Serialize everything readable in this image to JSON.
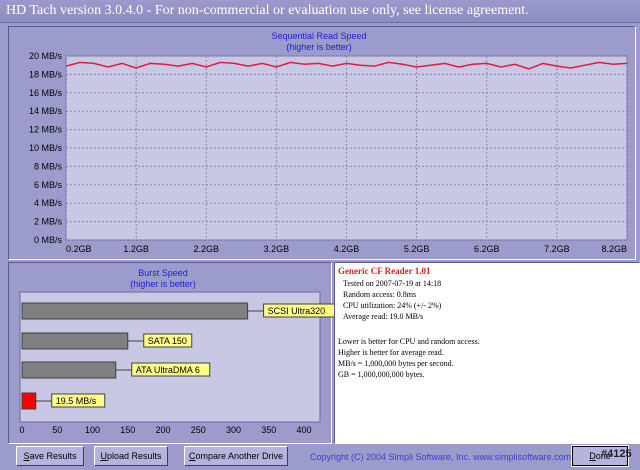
{
  "window": {
    "title": "HD Tach version 3.0.4.0  - For non-commercial or evaluation use only, see license agreement."
  },
  "sequential": {
    "title": "Sequential Read Speed",
    "subtitle": "(higher is better)"
  },
  "burst": {
    "title": "Burst Speed",
    "subtitle": "(higher is better)"
  },
  "chart_data": [
    {
      "type": "line",
      "title": "Sequential Read Speed",
      "subtitle": "(higher is better)",
      "y_ticks": [
        "0 MB/s",
        "2 MB/s",
        "4 MB/s",
        "6 MB/s",
        "8 MB/s",
        "10 MB/s",
        "12 MB/s",
        "14 MB/s",
        "16 MB/s",
        "18 MB/s",
        "20 MB/s"
      ],
      "x_ticks": [
        "0.2GB",
        "1.2GB",
        "2.2GB",
        "3.2GB",
        "4.2GB",
        "5.2GB",
        "6.2GB",
        "7.2GB",
        "8.2GB"
      ],
      "xlim": [
        0.2,
        8.2
      ],
      "ylim": [
        0,
        20
      ],
      "grid": true,
      "series_color": "#e01c3c",
      "x": [
        0.2,
        0.4,
        0.6,
        0.8,
        1.0,
        1.2,
        1.4,
        1.6,
        1.8,
        2.0,
        2.2,
        2.4,
        2.6,
        2.8,
        3.0,
        3.2,
        3.4,
        3.6,
        3.8,
        4.0,
        4.2,
        4.4,
        4.6,
        4.8,
        5.0,
        5.2,
        5.4,
        5.6,
        5.8,
        6.0,
        6.2,
        6.4,
        6.6,
        6.8,
        7.0,
        7.2,
        7.4,
        7.6,
        7.8,
        8.0,
        8.2
      ],
      "y": [
        18.9,
        19.3,
        19.2,
        18.8,
        19.2,
        18.7,
        19.2,
        19.1,
        18.9,
        19.2,
        18.8,
        19.3,
        19.2,
        18.9,
        19.2,
        18.8,
        19.3,
        19.1,
        19.2,
        18.9,
        19.2,
        19.0,
        18.9,
        19.3,
        19.1,
        18.8,
        19.0,
        19.2,
        18.8,
        19.1,
        19.2,
        18.8,
        19.1,
        18.6,
        19.2,
        18.9,
        18.7,
        19.0,
        19.3,
        19.1,
        19.2
      ]
    },
    {
      "type": "bar",
      "orientation": "horizontal",
      "title": "Burst Speed",
      "subtitle": "(higher is better)",
      "x_ticks": [
        "0",
        "50",
        "100",
        "150",
        "200",
        "250",
        "300",
        "350",
        "400"
      ],
      "xlim": [
        0,
        400
      ],
      "categories": [
        "SCSI Ultra320",
        "SATA 150",
        "ATA UltraDMA 6",
        "19.5 MB/s"
      ],
      "values": [
        320,
        150,
        133,
        19.5
      ],
      "colors": [
        "#808080",
        "#808080",
        "#808080",
        "#ff0000"
      ]
    }
  ],
  "info": {
    "device": "Generic CF Reader 1.01",
    "lines": [
      "Tested on 2007-07-19 at 14:18",
      "Random access: 0.8ms",
      "CPU utilization: 24% (+/- 2%)",
      "Average read: 19.0 MB/s"
    ],
    "notes": [
      "Lower is better for CPU and random access.",
      "Higher is better for average read.",
      "MB/s = 1,000,000 bytes per second.",
      "GB = 1,000,000,000 bytes."
    ]
  },
  "buttons": {
    "save": {
      "u": "S",
      "rest": "ave Results"
    },
    "upload": {
      "u": "U",
      "rest": "pload Results"
    },
    "compare": {
      "u": "C",
      "rest": "ompare Another Drive"
    },
    "done": {
      "u": "D",
      "rest": "one"
    }
  },
  "copyright": "Copyright (C) 2004 Simpli Software, Inc. www.simplisoftware.com",
  "watermark": "#4125"
}
